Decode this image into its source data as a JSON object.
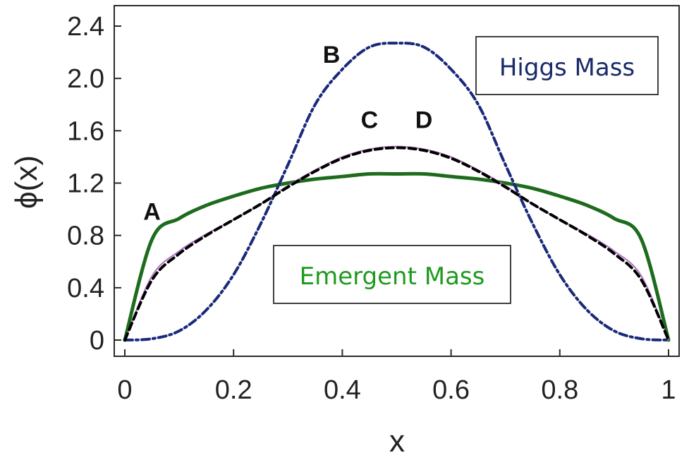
{
  "chart_data": {
    "type": "line",
    "xlabel": "x",
    "ylabel": "ϕ(x)",
    "xlim": [
      0,
      1
    ],
    "ylim": [
      -0.15,
      2.55
    ],
    "x_ticks": [
      0,
      0.2,
      0.4,
      0.6,
      0.8,
      1
    ],
    "x_tick_labels": [
      "0",
      "0.2",
      "0.4",
      "0.6",
      "0.8",
      "1"
    ],
    "y_ticks": [
      0,
      0.4,
      0.8,
      1.2,
      1.6,
      2.0,
      2.4
    ],
    "y_tick_labels": [
      "0",
      "0.4",
      "0.8",
      "1.2",
      "1.6",
      "2.0",
      "2.4"
    ],
    "grid": false,
    "x": [
      0,
      0.05,
      0.1,
      0.15,
      0.2,
      0.25,
      0.3,
      0.35,
      0.4,
      0.45,
      0.5,
      0.55,
      0.6,
      0.65,
      0.7,
      0.75,
      0.8,
      0.85,
      0.9,
      0.95,
      1
    ],
    "series": [
      {
        "name": "A",
        "color": "#1e6b1e",
        "style": "solid",
        "values": [
          0,
          0.77,
          0.93,
          1.03,
          1.1,
          1.16,
          1.2,
          1.23,
          1.25,
          1.27,
          1.27,
          1.27,
          1.25,
          1.23,
          1.2,
          1.16,
          1.1,
          1.03,
          0.93,
          0.77,
          0
        ]
      },
      {
        "name": "B",
        "color": "#1a2a7a",
        "style": "dash-dot",
        "values": [
          0,
          0.01,
          0.07,
          0.23,
          0.5,
          0.89,
          1.34,
          1.8,
          2.07,
          2.24,
          2.27,
          2.24,
          2.07,
          1.8,
          1.34,
          0.89,
          0.5,
          0.23,
          0.07,
          0.01,
          0
        ]
      },
      {
        "name": "C",
        "color": "#b070c0",
        "style": "solid-thin",
        "values": [
          0,
          0.49,
          0.68,
          0.81,
          0.92,
          1.04,
          1.18,
          1.3,
          1.4,
          1.46,
          1.48,
          1.46,
          1.4,
          1.3,
          1.18,
          1.04,
          0.92,
          0.81,
          0.68,
          0.49,
          0
        ]
      },
      {
        "name": "D",
        "color": "#000000",
        "style": "dashed",
        "values": [
          0,
          0.46,
          0.66,
          0.8,
          0.92,
          1.04,
          1.17,
          1.29,
          1.39,
          1.45,
          1.47,
          1.45,
          1.39,
          1.29,
          1.17,
          1.04,
          0.92,
          0.8,
          0.66,
          0.46,
          0
        ]
      }
    ],
    "curve_labels": [
      {
        "text": "A",
        "x": 0.05,
        "y": 0.92
      },
      {
        "text": "B",
        "x": 0.38,
        "y": 2.12
      },
      {
        "text": "C",
        "x": 0.45,
        "y": 1.62
      },
      {
        "text": "D",
        "x": 0.55,
        "y": 1.62
      }
    ],
    "annotations": [
      {
        "text": "Higgs Mass",
        "color": "#1a2a6a"
      },
      {
        "text": "Emergent Mass",
        "color": "#1e9a1e"
      }
    ]
  }
}
